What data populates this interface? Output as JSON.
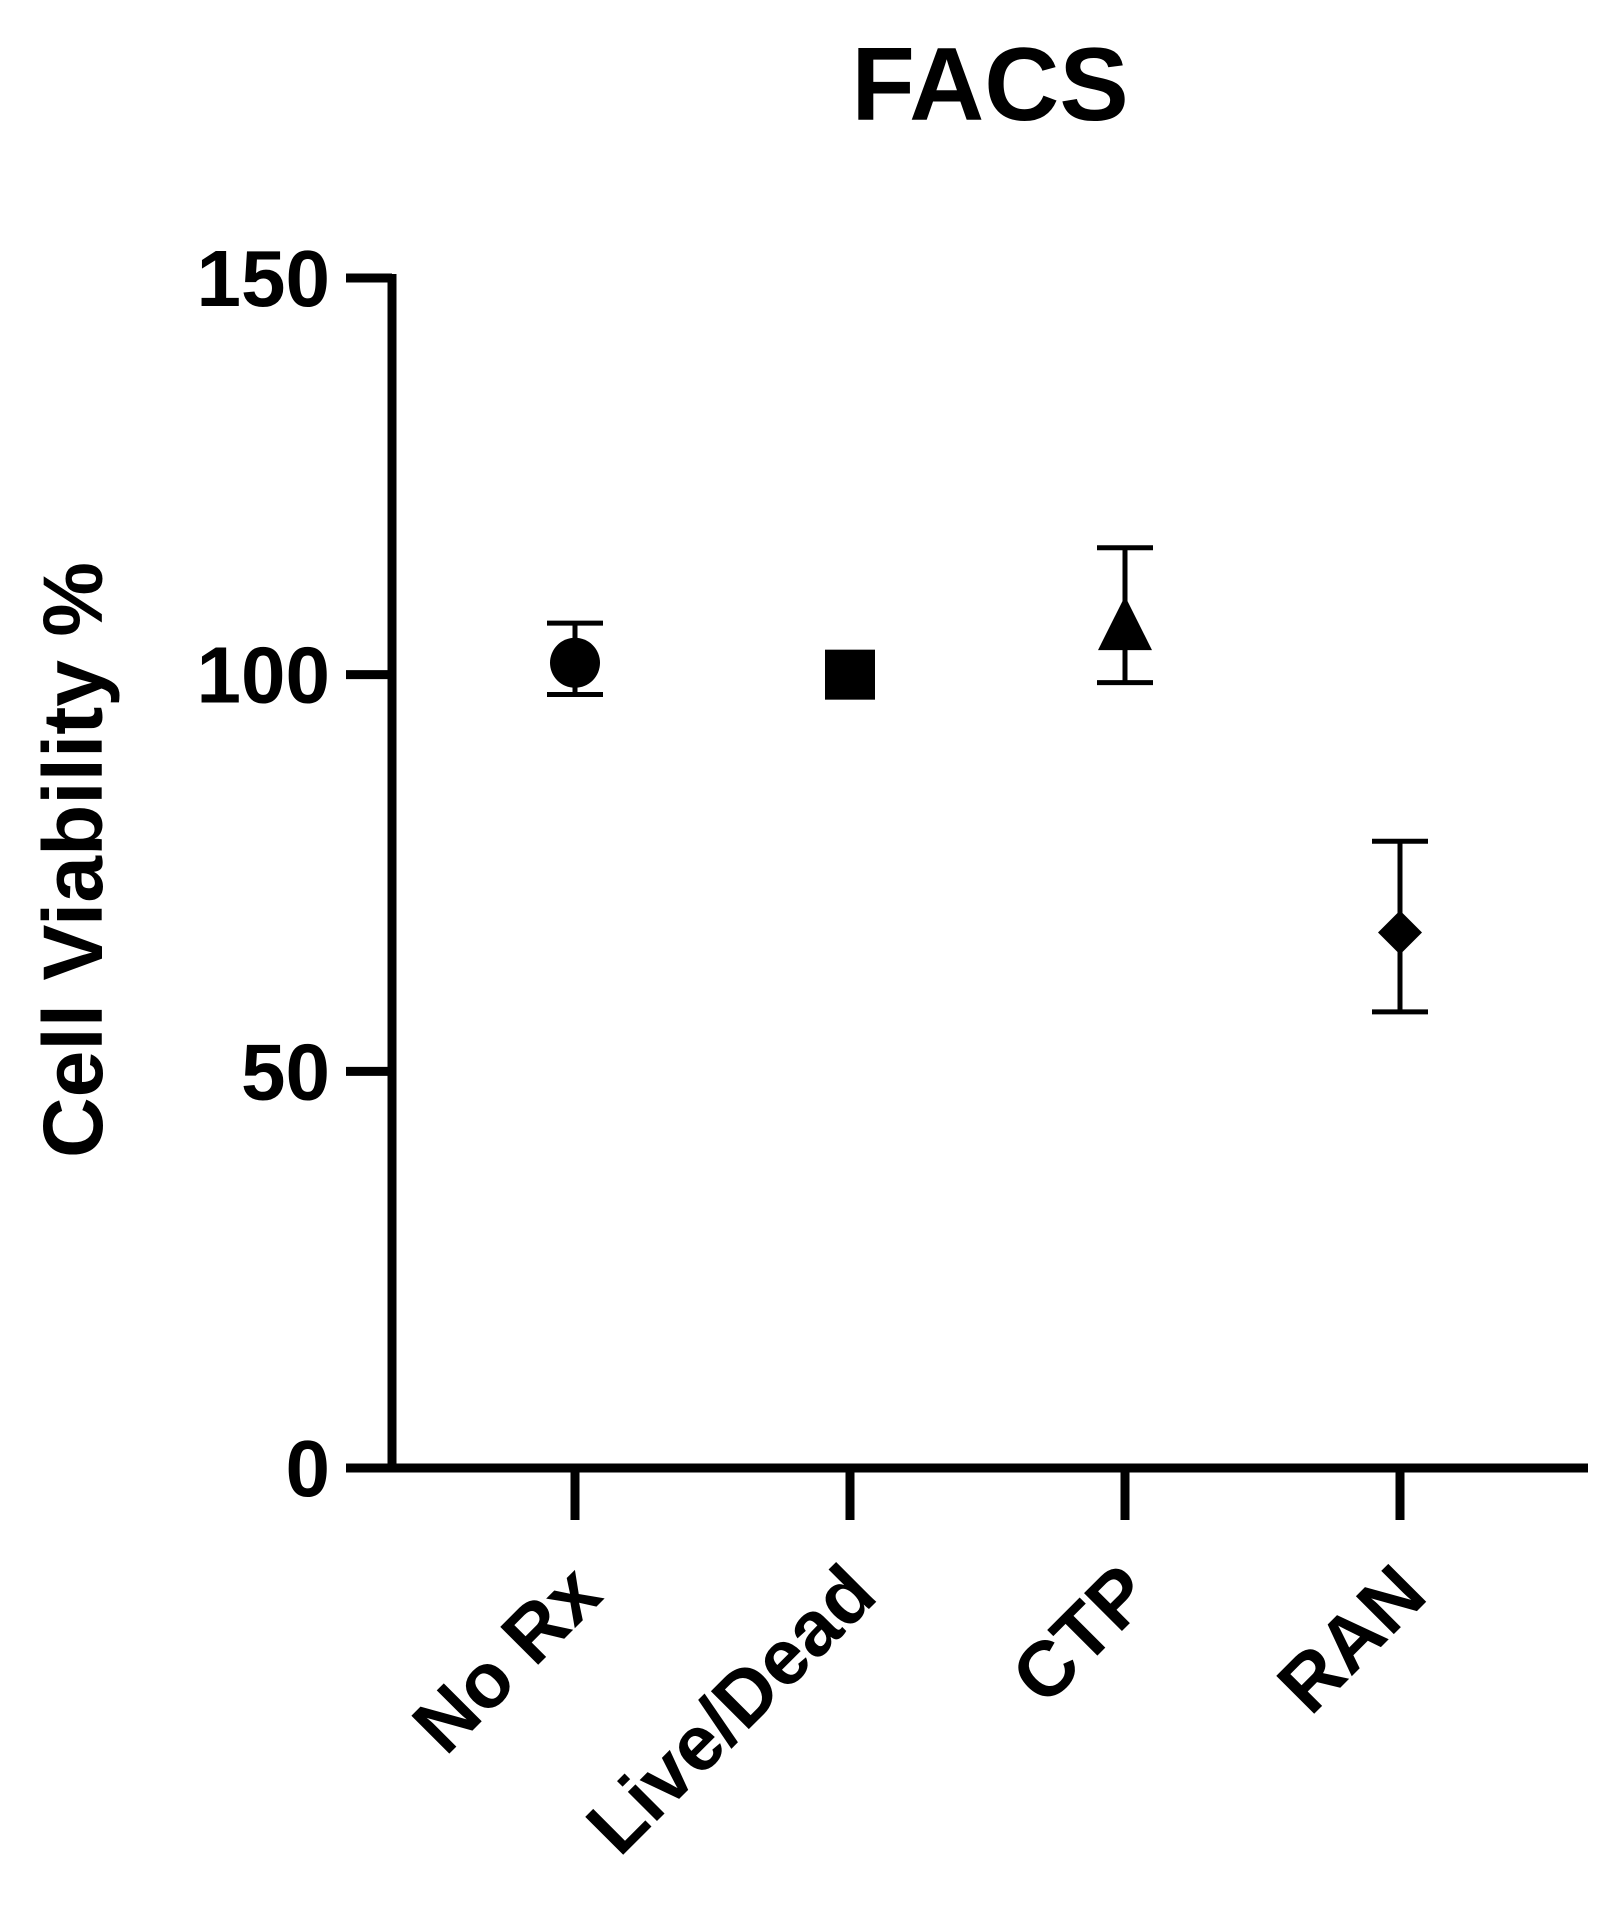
{
  "chart_data": {
    "type": "scatter",
    "title": "FACS",
    "xlabel": "",
    "ylabel": "Cell Viability %",
    "ylim": [
      0,
      150
    ],
    "yticks": [
      0,
      50,
      100,
      150
    ],
    "grid": false,
    "legend": "none",
    "categories": [
      "No Rx",
      "Live/Dead",
      "CTP",
      "RAN"
    ],
    "points": [
      {
        "category": "No Rx",
        "mean": 101.5,
        "err_low": 97.5,
        "err_high": 106.5,
        "marker": "circle"
      },
      {
        "category": "Live/Dead",
        "mean": 100,
        "err_low": 100,
        "err_high": 100,
        "marker": "square"
      },
      {
        "category": "CTP",
        "mean": 106,
        "err_low": 99,
        "err_high": 116,
        "marker": "triangle"
      },
      {
        "category": "RAN",
        "mean": 67.5,
        "err_low": 57.5,
        "err_high": 79,
        "marker": "diamond"
      }
    ],
    "colors": {
      "marker": "#000000",
      "axis": "#000000"
    }
  }
}
